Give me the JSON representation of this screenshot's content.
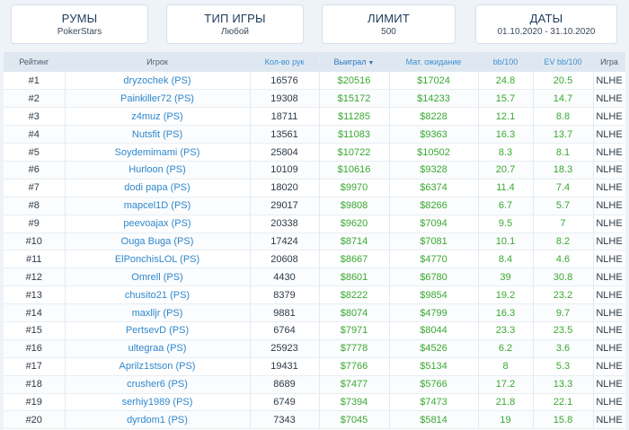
{
  "filters": [
    {
      "title": "РУМЫ",
      "value": "PokerStars"
    },
    {
      "title": "ТИП ИГРЫ",
      "value": "Любой"
    },
    {
      "title": "ЛИМИТ",
      "value": "500"
    },
    {
      "title": "ДАТЫ",
      "value": "01.10.2020 - 31.10.2020"
    }
  ],
  "table": {
    "columns": {
      "rank": "Рейтинг",
      "player": "Игрок",
      "hands": "Кол-во рук",
      "won": "Выиграл",
      "ev": "Мат. ожидание",
      "bb100": "bb/100",
      "evbb100": "EV bb/100",
      "game": "Игра"
    },
    "sort_arrow": "▼",
    "rows": [
      {
        "rank": "#1",
        "player": "dryzochek (PS)",
        "hands": "16576",
        "won": "$20516",
        "ev": "$17024",
        "bb100": "24.8",
        "evbb100": "20.5",
        "game": "NLHE"
      },
      {
        "rank": "#2",
        "player": "Painkiller72 (PS)",
        "hands": "19308",
        "won": "$15172",
        "ev": "$14233",
        "bb100": "15.7",
        "evbb100": "14.7",
        "game": "NLHE"
      },
      {
        "rank": "#3",
        "player": "z4muz (PS)",
        "hands": "18711",
        "won": "$11285",
        "ev": "$8228",
        "bb100": "12.1",
        "evbb100": "8.8",
        "game": "NLHE"
      },
      {
        "rank": "#4",
        "player": "Nutsfit (PS)",
        "hands": "13561",
        "won": "$11083",
        "ev": "$9363",
        "bb100": "16.3",
        "evbb100": "13.7",
        "game": "NLHE"
      },
      {
        "rank": "#5",
        "player": "Soydemimami (PS)",
        "hands": "25804",
        "won": "$10722",
        "ev": "$10502",
        "bb100": "8.3",
        "evbb100": "8.1",
        "game": "NLHE"
      },
      {
        "rank": "#6",
        "player": "Hurloon (PS)",
        "hands": "10109",
        "won": "$10616",
        "ev": "$9328",
        "bb100": "20.7",
        "evbb100": "18.3",
        "game": "NLHE"
      },
      {
        "rank": "#7",
        "player": "dodi papa (PS)",
        "hands": "18020",
        "won": "$9970",
        "ev": "$6374",
        "bb100": "11.4",
        "evbb100": "7.4",
        "game": "NLHE"
      },
      {
        "rank": "#8",
        "player": "mapcel1D (PS)",
        "hands": "29017",
        "won": "$9808",
        "ev": "$8266",
        "bb100": "6.7",
        "evbb100": "5.7",
        "game": "NLHE"
      },
      {
        "rank": "#9",
        "player": "peevoajax (PS)",
        "hands": "20338",
        "won": "$9620",
        "ev": "$7094",
        "bb100": "9.5",
        "evbb100": "7",
        "game": "NLHE"
      },
      {
        "rank": "#10",
        "player": "Ouga Buga (PS)",
        "hands": "17424",
        "won": "$8714",
        "ev": "$7081",
        "bb100": "10.1",
        "evbb100": "8.2",
        "game": "NLHE"
      },
      {
        "rank": "#11",
        "player": "ElPonchisLOL (PS)",
        "hands": "20608",
        "won": "$8667",
        "ev": "$4770",
        "bb100": "8.4",
        "evbb100": "4.6",
        "game": "NLHE"
      },
      {
        "rank": "#12",
        "player": "Omrell (PS)",
        "hands": "4430",
        "won": "$8601",
        "ev": "$6780",
        "bb100": "39",
        "evbb100": "30.8",
        "game": "NLHE"
      },
      {
        "rank": "#13",
        "player": "chusito21 (PS)",
        "hands": "8379",
        "won": "$8222",
        "ev": "$9854",
        "bb100": "19.2",
        "evbb100": "23.2",
        "game": "NLHE"
      },
      {
        "rank": "#14",
        "player": "maxlljr (PS)",
        "hands": "9881",
        "won": "$8074",
        "ev": "$4799",
        "bb100": "16.3",
        "evbb100": "9.7",
        "game": "NLHE"
      },
      {
        "rank": "#15",
        "player": "PertsevD (PS)",
        "hands": "6764",
        "won": "$7971",
        "ev": "$8044",
        "bb100": "23.3",
        "evbb100": "23.5",
        "game": "NLHE"
      },
      {
        "rank": "#16",
        "player": "ultegraa (PS)",
        "hands": "25923",
        "won": "$7778",
        "ev": "$4526",
        "bb100": "6.2",
        "evbb100": "3.6",
        "game": "NLHE"
      },
      {
        "rank": "#17",
        "player": "Aprilz1stson (PS)",
        "hands": "19431",
        "won": "$7766",
        "ev": "$5134",
        "bb100": "8",
        "evbb100": "5.3",
        "game": "NLHE"
      },
      {
        "rank": "#18",
        "player": "crusher6 (PS)",
        "hands": "8689",
        "won": "$7477",
        "ev": "$5766",
        "bb100": "17.2",
        "evbb100": "13.3",
        "game": "NLHE"
      },
      {
        "rank": "#19",
        "player": "serhiy1989 (PS)",
        "hands": "6749",
        "won": "$7394",
        "ev": "$7473",
        "bb100": "21.8",
        "evbb100": "22.1",
        "game": "NLHE"
      },
      {
        "rank": "#20",
        "player": "dyrdom1 (PS)",
        "hands": "7343",
        "won": "$7045",
        "ev": "$5814",
        "bb100": "19",
        "evbb100": "15.8",
        "game": "NLHE"
      }
    ]
  }
}
